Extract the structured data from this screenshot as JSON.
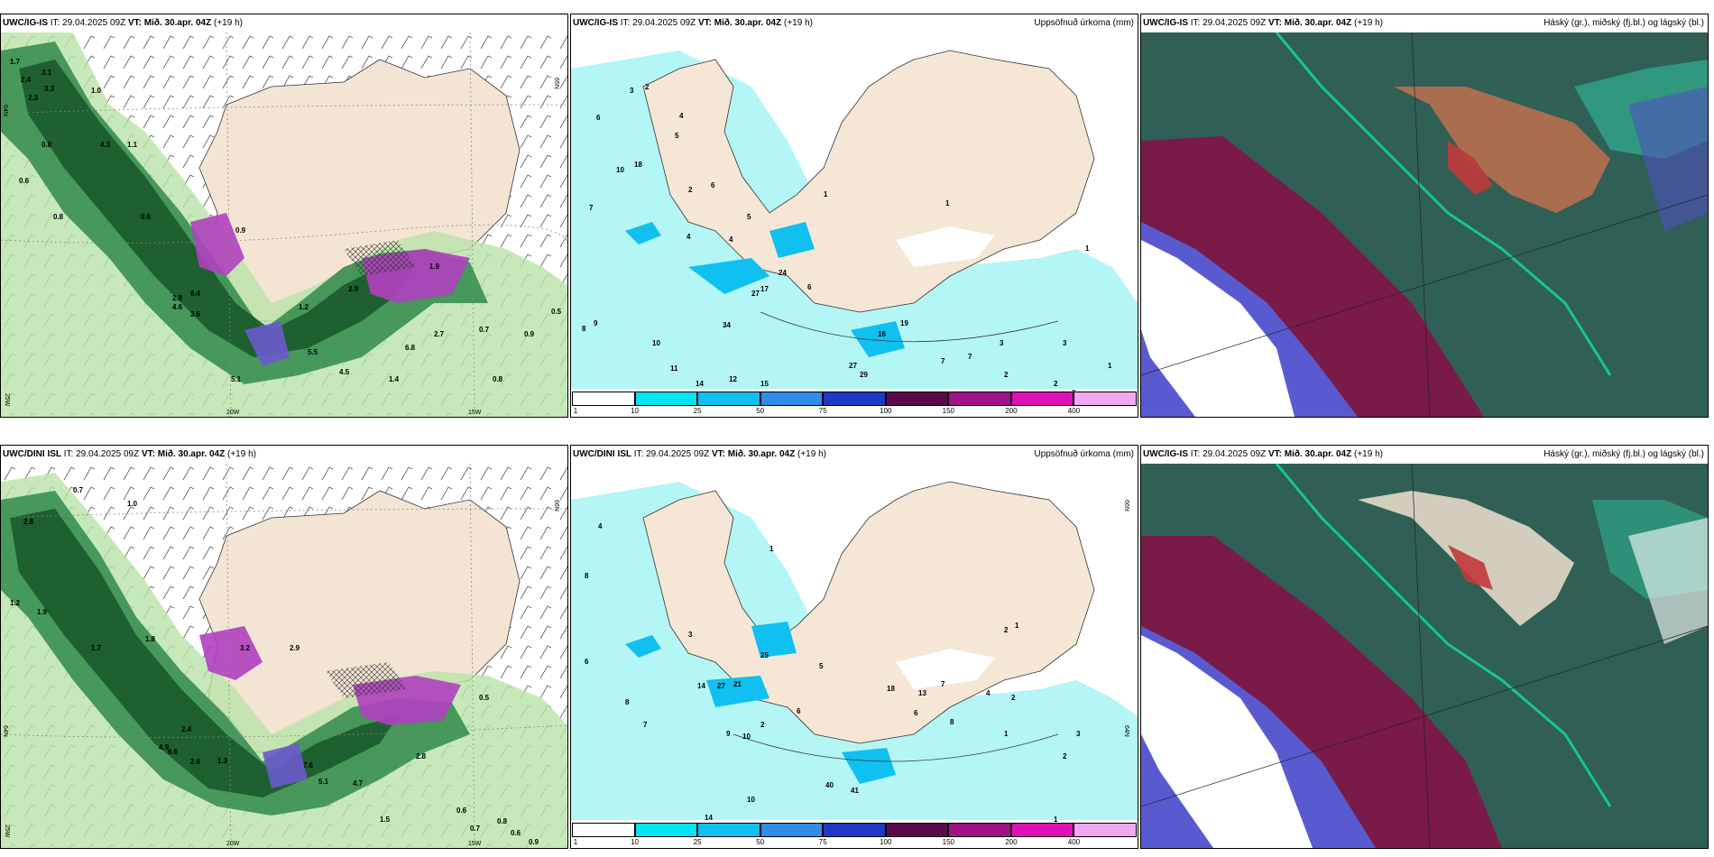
{
  "panels": [
    {
      "id": "p1",
      "model": "UWC/IG-IS",
      "it": "IT: 29.04.2025 09Z",
      "vt_label": "VT:",
      "vt": "Mið. 30.apr. 04Z",
      "lead": "(+19 h)",
      "right_title": ""
    },
    {
      "id": "p2",
      "model": "UWC/IG-IS",
      "it": "IT: 29.04.2025 09Z",
      "vt_label": "VT:",
      "vt": "Mið. 30.apr. 04Z",
      "lead": "(+19 h)",
      "right_title": "Uppsöfnuð úrkoma (mm)"
    },
    {
      "id": "p3",
      "model": "UWC/IG-IS",
      "it": "IT: 29.04.2025 09Z",
      "vt_label": "VT:",
      "vt": "Mið. 30.apr. 04Z",
      "lead": "(+19 h)",
      "right_title": "Háský (gr.), miðský (fj.bl.) og lágský (bl.)"
    },
    {
      "id": "p4",
      "model": "UWC/DINI ISL",
      "it": "IT: 29.04.2025 09Z",
      "vt_label": "VT:",
      "vt": "Mið. 30.apr. 04Z",
      "lead": "(+19 h)",
      "right_title": ""
    },
    {
      "id": "p5",
      "model": "UWC/DINI ISL",
      "it": "IT: 29.04.2025 09Z",
      "vt_label": "VT:",
      "vt": "Mið. 30.apr. 04Z",
      "lead": "(+19 h)",
      "right_title": "Uppsöfnuð úrkoma (mm)"
    },
    {
      "id": "p6",
      "model": "UWC/IG-IS",
      "it": "IT: 29.04.2025 09Z",
      "vt_label": "VT:",
      "vt": "Mið. 30.apr. 04Z",
      "lead": "(+19 h)",
      "right_title": "Háský (gr.), miðský (fj.bl.) og lágský (bl.)"
    }
  ],
  "colorbar": {
    "ticks": [
      "1",
      "10",
      "25",
      "50",
      "75",
      "100",
      "150",
      "200",
      "400"
    ],
    "colors": [
      "#ffffff",
      "#00e5f0",
      "#10c0f0",
      "#2f8de8",
      "#2038c8",
      "#5a0a4a",
      "#a01288",
      "#e010b8",
      "#f0a8f0"
    ]
  },
  "grid_labels": {
    "p1": [
      "65N",
      "64N",
      "25W",
      "20W",
      "15W"
    ],
    "p4": [
      "66N",
      "64N",
      "25W",
      "20W",
      "15W"
    ],
    "p2": [
      "65N"
    ],
    "p5": [
      "66N",
      "64N"
    ]
  },
  "precip_values_p1": [
    "1.7",
    "2.4",
    "2.3",
    "3.1",
    "3.3",
    "1.0",
    "0.8",
    "0.6",
    "1.1",
    "4.3",
    "0.8",
    "0.6",
    "0.9",
    "2.8",
    "4.6",
    "6.4",
    "3.6",
    "5.1",
    "5.5",
    "4.5",
    "6.8",
    "2.7",
    "1.2",
    "0.7",
    "0.9",
    "0.8",
    "0.5",
    "1.9",
    "2.9",
    "1.4"
  ],
  "precip_values_p2": [
    "3",
    "6",
    "2",
    "4",
    "5",
    "10",
    "18",
    "7",
    "2",
    "6",
    "4",
    "5",
    "9",
    "8",
    "11",
    "10",
    "34",
    "27",
    "17",
    "15",
    "12",
    "14",
    "7",
    "7",
    "2",
    "3",
    "3",
    "2",
    "2",
    "4",
    "1",
    "1",
    "1",
    "1",
    "6",
    "16",
    "19",
    "27",
    "29",
    "24"
  ],
  "precip_values_p4": [
    "0.7",
    "1.0",
    "2.8",
    "1.7",
    "1.9",
    "1.2",
    "2.4",
    "4.9",
    "6.6",
    "1.3",
    "1.8",
    "3.2",
    "2.9",
    "4.7",
    "5.1",
    "7.6",
    "2.6",
    "2.8",
    "0.6",
    "0.5",
    "0.8",
    "0.7",
    "0.6",
    "0.9",
    "1.5"
  ],
  "precip_values_p5": [
    "4",
    "8",
    "6",
    "7",
    "2",
    "1",
    "3",
    "5",
    "6",
    "8",
    "10",
    "9",
    "14",
    "25",
    "27",
    "21",
    "13",
    "18",
    "7",
    "6",
    "8",
    "4",
    "2",
    "1",
    "1",
    "2",
    "3",
    "2",
    "1",
    "14",
    "40",
    "41",
    "10"
  ]
}
